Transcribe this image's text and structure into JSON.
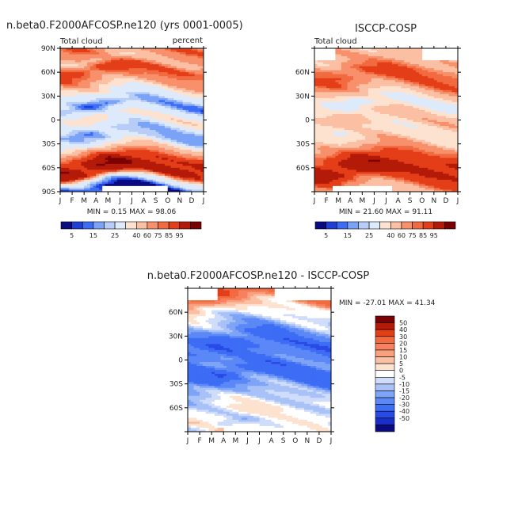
{
  "months": [
    "J",
    "F",
    "M",
    "A",
    "M",
    "J",
    "J",
    "A",
    "S",
    "O",
    "N",
    "D",
    "J"
  ],
  "lat_labels": [
    "90N",
    "60N",
    "30N",
    "0",
    "30S",
    "60S",
    "90S"
  ],
  "lat_labels_short": [
    "60N",
    "30N",
    "0",
    "30S",
    "60S"
  ],
  "colors": {
    "abs": [
      "#0a0a82",
      "#1f3fd6",
      "#3d6cf5",
      "#7aa3f7",
      "#b7cdf7",
      "#ddeafc",
      "#fde2d0",
      "#fbbfa3",
      "#f7906b",
      "#f26b40",
      "#e43e18",
      "#b41a08",
      "#7a0003"
    ],
    "diff": [
      "#0a0a82",
      "#1a2fc8",
      "#2a4ae6",
      "#3d6cf5",
      "#5b88f6",
      "#7ea4f7",
      "#a8c2f8",
      "#cfdcfa",
      "#ffffff",
      "#fde2d0",
      "#fbbfa3",
      "#f9a07e",
      "#f7805e",
      "#f26b40",
      "#e43e18",
      "#b41a08",
      "#7a0003"
    ]
  },
  "chart_data": [
    {
      "type": "heatmap",
      "title": "n.beta0.F2000AFCOSP.ne120 (yrs 0001-0005)",
      "left_label": "Total cloud",
      "right_label": "percent",
      "x": [
        "J",
        "F",
        "M",
        "A",
        "M",
        "J",
        "J",
        "A",
        "S",
        "O",
        "N",
        "D",
        "J"
      ],
      "ylim": [
        -90,
        90
      ],
      "min_max_text": "MIN =    0.15  MAX =    98.06",
      "min": 0.15,
      "max": 98.06,
      "profile": [
        [
          -85,
          5
        ],
        [
          -75,
          30
        ],
        [
          -68,
          85
        ],
        [
          -58,
          93
        ],
        [
          -50,
          88
        ],
        [
          -42,
          70
        ],
        [
          -35,
          50
        ],
        [
          -25,
          25
        ],
        [
          -15,
          20
        ],
        [
          -5,
          35
        ],
        [
          3,
          45
        ],
        [
          10,
          30
        ],
        [
          18,
          15
        ],
        [
          25,
          25
        ],
        [
          35,
          40
        ],
        [
          45,
          55
        ],
        [
          55,
          70
        ],
        [
          65,
          80
        ],
        [
          75,
          55
        ],
        [
          85,
          65
        ],
        [
          90,
          70
        ]
      ],
      "missing": [
        [
          -90,
          -82,
          0.3,
          0.75
        ]
      ]
    },
    {
      "type": "heatmap",
      "title": "ISCCP-COSP",
      "left_label": "Total cloud",
      "right_label": "",
      "x": [
        "J",
        "F",
        "M",
        "A",
        "M",
        "J",
        "J",
        "A",
        "S",
        "O",
        "N",
        "D",
        "J"
      ],
      "ylim": [
        -90,
        90
      ],
      "min_max_text": "MIN =   21.60  MAX =   91.11",
      "min": 21.6,
      "max": 91.11,
      "profile": [
        [
          -85,
          60
        ],
        [
          -75,
          75
        ],
        [
          -68,
          88
        ],
        [
          -58,
          90
        ],
        [
          -50,
          85
        ],
        [
          -42,
          75
        ],
        [
          -35,
          62
        ],
        [
          -25,
          50
        ],
        [
          -15,
          45
        ],
        [
          -5,
          50
        ],
        [
          3,
          55
        ],
        [
          10,
          48
        ],
        [
          18,
          35
        ],
        [
          25,
          40
        ],
        [
          35,
          55
        ],
        [
          45,
          68
        ],
        [
          55,
          75
        ],
        [
          65,
          70
        ],
        [
          75,
          58
        ],
        [
          85,
          55
        ]
      ],
      "missing": [
        [
          -90,
          -82,
          0.12,
          0.55
        ],
        [
          75,
          90,
          0.0,
          0.15
        ],
        [
          75,
          90,
          0.75,
          1.0
        ]
      ]
    },
    {
      "type": "heatmap",
      "title": "n.beta0.F2000AFCOSP.ne120 - ISCCP-COSP",
      "x": [
        "J",
        "F",
        "M",
        "A",
        "M",
        "J",
        "J",
        "A",
        "S",
        "O",
        "N",
        "D",
        "J"
      ],
      "ylim": [
        -90,
        90
      ],
      "min_max_text": "MIN = -27.01  MAX =   41.34",
      "min": -27.01,
      "max": 41.34,
      "profile": [
        [
          -88,
          5
        ],
        [
          -80,
          -3
        ],
        [
          -72,
          3
        ],
        [
          -60,
          2
        ],
        [
          -48,
          -2
        ],
        [
          -40,
          -8
        ],
        [
          -30,
          -15
        ],
        [
          -20,
          -25
        ],
        [
          -10,
          -22
        ],
        [
          0,
          -18
        ],
        [
          10,
          -22
        ],
        [
          20,
          -25
        ],
        [
          30,
          -20
        ],
        [
          40,
          -12
        ],
        [
          50,
          -5
        ],
        [
          60,
          2
        ],
        [
          70,
          12
        ],
        [
          78,
          30
        ],
        [
          85,
          40
        ]
      ],
      "missing": [
        [
          -90,
          -82,
          0.25,
          0.6
        ],
        [
          75,
          90,
          0.0,
          0.2
        ],
        [
          75,
          90,
          0.6,
          1.0
        ]
      ],
      "levels": [
        "50",
        "40",
        "30",
        "20",
        "15",
        "10",
        "5",
        "0",
        "-5",
        "-10",
        "-15",
        "-20",
        "-30",
        "-40",
        "-50"
      ]
    }
  ],
  "abs_levels": [
    "5",
    "15",
    "25",
    "40",
    "60",
    "75",
    "85",
    "95"
  ]
}
